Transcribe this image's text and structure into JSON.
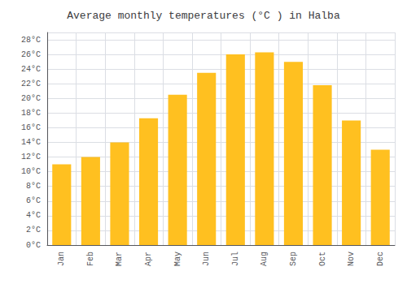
{
  "chart_data": {
    "type": "bar",
    "title": "Average monthly temperatures (°C ) in Halba",
    "categories": [
      "Jan",
      "Feb",
      "Mar",
      "Apr",
      "May",
      "Jun",
      "Jul",
      "Aug",
      "Sep",
      "Oct",
      "Nov",
      "Dec"
    ],
    "values": [
      11,
      12,
      14,
      17.3,
      20.5,
      23.5,
      26,
      26.3,
      25,
      21.8,
      17,
      13
    ],
    "color": "#FFC020",
    "ylim": [
      0,
      29
    ],
    "yticks": [
      {
        "value": 0,
        "label": "0°C"
      },
      {
        "value": 2,
        "label": "2°C"
      },
      {
        "value": 4,
        "label": "4°C"
      },
      {
        "value": 6,
        "label": "6°C"
      },
      {
        "value": 8,
        "label": "8°C"
      },
      {
        "value": 10,
        "label": "10°C"
      },
      {
        "value": 12,
        "label": "12°C"
      },
      {
        "value": 14,
        "label": "14°C"
      },
      {
        "value": 16,
        "label": "16°C"
      },
      {
        "value": 18,
        "label": "18°C"
      },
      {
        "value": 20,
        "label": "20°C"
      },
      {
        "value": 22,
        "label": "22°C"
      },
      {
        "value": 24,
        "label": "24°C"
      },
      {
        "value": 26,
        "label": "26°C"
      },
      {
        "value": 28,
        "label": "28°C"
      }
    ],
    "grid": true
  }
}
